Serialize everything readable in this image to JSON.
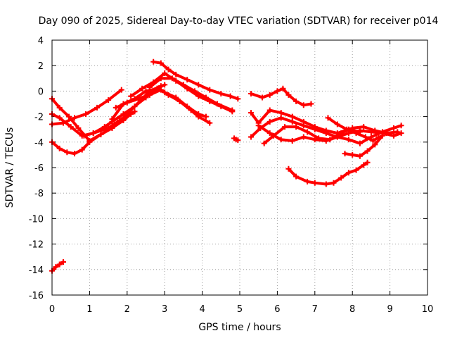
{
  "chart_data": {
    "type": "scatter",
    "title": "Day 090 of 2025, Sidereal Day-to-day VTEC variation (SDTVAR) for receiver p014",
    "xlabel": "GPS time / hours",
    "ylabel": "SDTVAR / TECUs",
    "xlim": [
      0,
      10
    ],
    "ylim": [
      -16,
      4
    ],
    "xticks": [
      "0",
      "1",
      "2",
      "3",
      "4",
      "5",
      "6",
      "7",
      "8",
      "9",
      "10"
    ],
    "yticks": [
      "4",
      "2",
      "0",
      "-2",
      "-4",
      "-6",
      "-8",
      "-10",
      "-12",
      "-14",
      "-16"
    ],
    "grid": true,
    "color": "#ff0000",
    "series": [
      {
        "x": [
          0.0,
          0.3,
          0.6,
          0.9,
          1.2,
          1.5,
          1.85
        ],
        "y": [
          -2.6,
          -2.5,
          -2.1,
          -1.8,
          -1.3,
          -0.7,
          0.1
        ]
      },
      {
        "x": [
          0.0,
          0.2,
          0.5,
          0.8,
          1.1,
          1.5,
          1.8,
          2.2
        ],
        "y": [
          -1.8,
          -2.1,
          -2.8,
          -3.5,
          -3.3,
          -2.9,
          -2.3,
          -1.6
        ]
      },
      {
        "x": [
          0.0,
          0.2,
          0.4,
          0.6,
          0.8,
          1.0,
          1.3,
          1.6,
          1.9,
          2.1
        ],
        "y": [
          -4.0,
          -4.5,
          -4.8,
          -4.9,
          -4.6,
          -4.0,
          -3.4,
          -2.9,
          -2.3,
          -1.8
        ]
      },
      {
        "x": [
          0.0,
          0.2,
          0.45,
          0.7,
          1.0,
          1.3,
          1.6,
          1.9,
          2.2,
          2.5,
          2.8,
          3.0
        ],
        "y": [
          -0.6,
          -1.3,
          -2.0,
          -2.9,
          -3.9,
          -3.4,
          -2.9,
          -2.1,
          -1.2,
          -0.5,
          0.2,
          0.5
        ]
      },
      {
        "x": [
          0.85,
          1.1,
          1.4,
          1.6,
          1.9,
          2.2,
          2.4,
          2.6,
          2.9
        ],
        "y": [
          -3.5,
          -3.3,
          -2.8,
          -2.4,
          -1.8,
          -1.2,
          -0.6,
          0.0,
          0.4
        ]
      },
      {
        "x": [
          1.6,
          1.9,
          2.2,
          2.5,
          2.8,
          3.0,
          3.3,
          3.6,
          3.9,
          4.1
        ],
        "y": [
          -2.2,
          -1.0,
          -0.6,
          0.0,
          0.2,
          -0.1,
          -0.5,
          -1.2,
          -1.8,
          -2.0
        ]
      },
      {
        "x": [
          1.7,
          2.0,
          2.3,
          2.6,
          2.9,
          3.1,
          3.4,
          3.7,
          3.9,
          4.2
        ],
        "y": [
          -1.3,
          -0.9,
          -0.6,
          -0.3,
          0.1,
          -0.3,
          -0.8,
          -1.5,
          -2.0,
          -2.5
        ]
      },
      {
        "x": [
          2.1,
          2.4,
          2.7,
          3.0,
          3.3,
          3.6,
          3.9,
          4.2,
          4.5,
          4.8
        ],
        "y": [
          -0.4,
          0.2,
          0.7,
          1.4,
          0.8,
          0.2,
          -0.4,
          -0.8,
          -1.2,
          -1.6
        ]
      },
      {
        "x": [
          2.7,
          2.9,
          3.1,
          3.3,
          3.6,
          3.9,
          4.2,
          4.5,
          4.75,
          4.95
        ],
        "y": [
          2.3,
          2.2,
          1.7,
          1.3,
          0.9,
          0.5,
          0.1,
          -0.2,
          -0.4,
          -0.6
        ]
      },
      {
        "x": [
          2.6,
          2.9,
          3.2,
          3.5,
          3.8,
          4.1,
          4.4,
          4.8
        ],
        "y": [
          0.3,
          1.0,
          1.0,
          0.5,
          0.0,
          -0.5,
          -1.0,
          -1.5
        ]
      },
      {
        "x": [
          4.85,
          4.9,
          4.95
        ],
        "y": [
          -3.7,
          -3.8,
          -3.85
        ]
      },
      {
        "x": [
          5.3,
          5.6,
          5.8,
          6.0,
          6.15,
          6.3,
          6.5,
          6.7,
          6.9
        ],
        "y": [
          -0.2,
          -0.5,
          -0.3,
          0.0,
          0.2,
          -0.3,
          -0.8,
          -1.1,
          -1.0
        ]
      },
      {
        "x": [
          5.3,
          5.5,
          5.8,
          6.1,
          6.4,
          6.7,
          7.0,
          7.3,
          7.6,
          7.9,
          8.2
        ],
        "y": [
          -1.7,
          -2.5,
          -1.5,
          -1.7,
          -2.0,
          -2.4,
          -2.8,
          -3.1,
          -3.3,
          -3.0,
          -3.2
        ]
      },
      {
        "x": [
          5.3,
          5.55,
          5.8,
          6.1,
          6.4,
          6.7,
          7.0,
          7.3,
          7.6,
          7.9,
          8.2,
          8.5,
          8.8,
          9.1,
          9.3
        ],
        "y": [
          -3.6,
          -2.9,
          -2.4,
          -2.1,
          -2.4,
          -2.7,
          -3.0,
          -3.3,
          -3.6,
          -3.8,
          -4.1,
          -3.6,
          -3.2,
          -2.9,
          -2.7
        ]
      },
      {
        "x": [
          5.5,
          5.8,
          6.1,
          6.4,
          6.7,
          7.0,
          7.3,
          7.6,
          7.9,
          8.2,
          8.5,
          8.8,
          9.1,
          9.3
        ],
        "y": [
          -2.7,
          -3.3,
          -3.8,
          -3.9,
          -3.6,
          -3.8,
          -3.9,
          -3.6,
          -3.3,
          -3.1,
          -3.2,
          -3.3,
          -3.5,
          -3.3
        ]
      },
      {
        "x": [
          5.65,
          5.9,
          6.2,
          6.5,
          6.8,
          7.1,
          7.4,
          7.7,
          8.0,
          8.3,
          8.6,
          8.9,
          9.2
        ],
        "y": [
          -4.1,
          -3.5,
          -2.8,
          -2.8,
          -3.2,
          -3.7,
          -3.8,
          -3.3,
          -2.9,
          -2.8,
          -3.1,
          -3.3,
          -3.2
        ]
      },
      {
        "x": [
          6.3,
          6.5,
          6.8,
          7.0,
          7.3,
          7.5,
          7.7,
          7.9,
          8.1,
          8.3,
          8.4
        ],
        "y": [
          -6.1,
          -6.7,
          -7.1,
          -7.2,
          -7.3,
          -7.2,
          -6.8,
          -6.4,
          -6.2,
          -5.8,
          -5.6
        ]
      },
      {
        "x": [
          7.35,
          7.6,
          7.85,
          8.1,
          8.35,
          8.55,
          8.7
        ],
        "y": [
          -2.1,
          -2.6,
          -3.0,
          -3.3,
          -3.6,
          -3.9,
          -3.6
        ]
      },
      {
        "x": [
          7.8,
          8.0,
          8.2,
          8.4,
          8.6,
          8.8
        ],
        "y": [
          -4.9,
          -5.0,
          -5.1,
          -4.7,
          -4.2,
          -3.5
        ]
      },
      {
        "x": [
          0.0,
          0.1,
          0.2,
          0.3
        ],
        "y": [
          -14.1,
          -13.8,
          -13.6,
          -13.4
        ]
      }
    ]
  }
}
